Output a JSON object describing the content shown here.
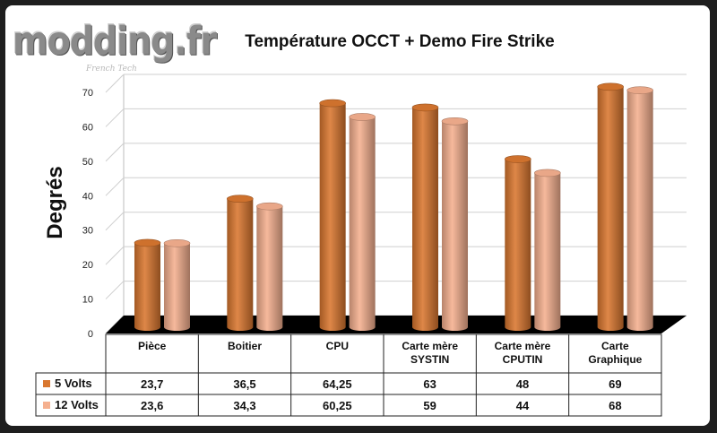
{
  "logo": {
    "text": "modding.fr",
    "subtext": "French Tech"
  },
  "chart_data": {
    "type": "bar",
    "title": "Température OCCT + Demo Fire Strike",
    "xlabel": "",
    "ylabel": "Degrés",
    "ylim": [
      0,
      70
    ],
    "yticks": [
      0,
      10,
      20,
      30,
      40,
      50,
      60,
      70
    ],
    "grid": true,
    "legend_placement": "data-table-left",
    "categories": [
      [
        "Pièce"
      ],
      [
        "Boitier"
      ],
      [
        "CPU"
      ],
      [
        "Carte mère",
        "SYSTIN"
      ],
      [
        "Carte mère",
        "CPUTIN"
      ],
      [
        "Carte",
        "Graphique"
      ]
    ],
    "series": [
      {
        "name": "5 Volts",
        "color": "#d9772f",
        "values": [
          23.7,
          36.5,
          64.25,
          63,
          48,
          69
        ],
        "labels": [
          "23,7",
          "36,5",
          "64,25",
          "63",
          "48",
          "69"
        ]
      },
      {
        "name": "12 Volts",
        "color": "#f5b08f",
        "values": [
          23.6,
          34.3,
          60.25,
          59,
          44,
          68
        ],
        "labels": [
          "23,6",
          "34,3",
          "60,25",
          "59",
          "44",
          "68"
        ]
      }
    ]
  }
}
